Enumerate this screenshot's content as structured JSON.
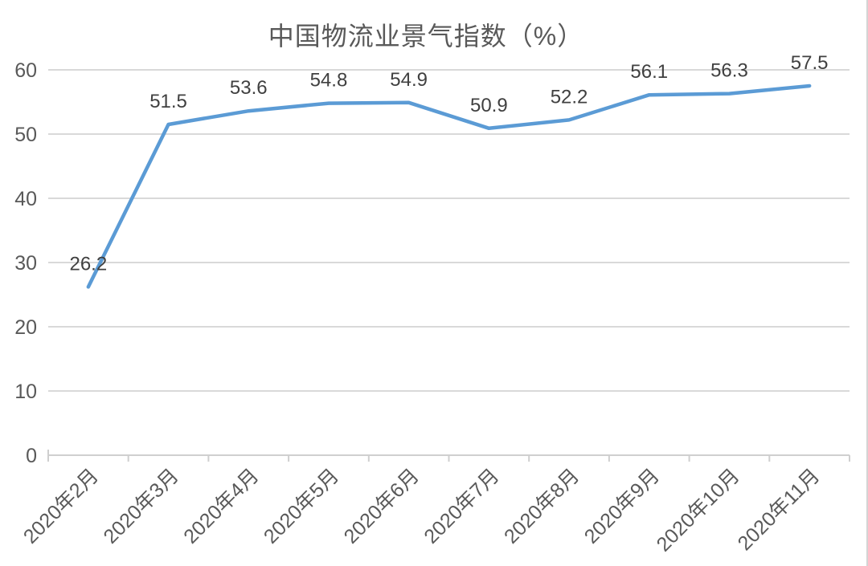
{
  "title": "中国物流业景气指数（%）",
  "colors": {
    "line": "#5B9BD5",
    "gridline": "#D9D9D9",
    "axis_line": "#CFCFCF",
    "axis_label": "#595959",
    "data_label": "#404040",
    "title": "#595959",
    "background": "#FFFFFF"
  },
  "chart_data": {
    "type": "line",
    "title": "中国物流业景气指数（%）",
    "categories": [
      "2020年2月",
      "2020年3月",
      "2020年4月",
      "2020年5月",
      "2020年6月",
      "2020年7月",
      "2020年8月",
      "2020年9月",
      "2020年10月",
      "2020年11月"
    ],
    "values": [
      26.2,
      51.5,
      53.6,
      54.8,
      54.9,
      50.9,
      52.2,
      56.1,
      56.3,
      57.5
    ],
    "data_labels": [
      "26.2",
      "51.5",
      "53.6",
      "54.8",
      "54.9",
      "50.9",
      "52.2",
      "56.1",
      "56.3",
      "57.5"
    ],
    "y_ticks": [
      0,
      10,
      20,
      30,
      40,
      50,
      60
    ],
    "ylim": [
      0,
      60
    ],
    "grid": true,
    "legend": "none",
    "show_data_labels": true,
    "x_label_rotation": -45
  }
}
